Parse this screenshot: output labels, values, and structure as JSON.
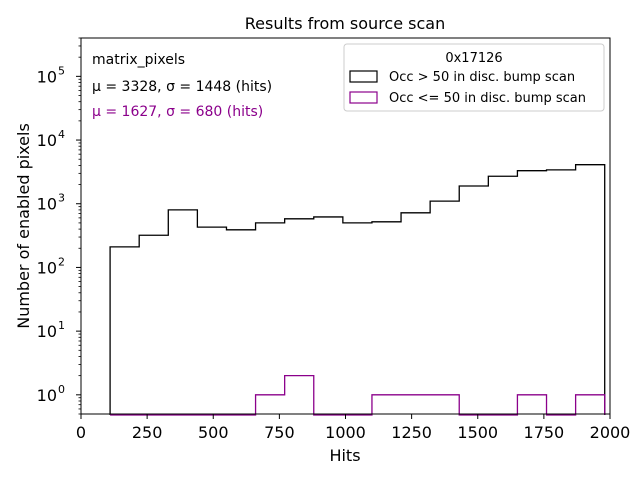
{
  "chart_data": {
    "type": "histogram",
    "title": "Results from source scan",
    "xlabel": "Hits",
    "ylabel": "Number of enabled pixels",
    "xlim": [
      0,
      2000
    ],
    "ylim": [
      0.5,
      400000
    ],
    "yscale": "log",
    "grid": false,
    "x_ticks": [
      0,
      250,
      500,
      750,
      1000,
      1250,
      1500,
      1750,
      2000
    ],
    "x_tick_labels": [
      "0",
      "250",
      "500",
      "750",
      "1000",
      "1250",
      "1500",
      "1750",
      "2000"
    ],
    "y_ticks": [
      1,
      10,
      100,
      1000,
      10000,
      100000
    ],
    "y_tick_labels": [
      {
        "base": "10",
        "exp": "0"
      },
      {
        "base": "10",
        "exp": "1"
      },
      {
        "base": "10",
        "exp": "2"
      },
      {
        "base": "10",
        "exp": "3"
      },
      {
        "base": "10",
        "exp": "4"
      },
      {
        "base": "10",
        "exp": "5"
      }
    ],
    "bin_edges": [
      110,
      220,
      330,
      440,
      550,
      660,
      770,
      880,
      990,
      1100,
      1210,
      1320,
      1430,
      1540,
      1650,
      1760,
      1870,
      1980
    ],
    "series": [
      {
        "name": "Occ > 50 in disc. bump scan",
        "color": "#000000",
        "counts": [
          210,
          320,
          800,
          430,
          390,
          500,
          580,
          620,
          500,
          520,
          720,
          1100,
          1900,
          2700,
          3300,
          3400,
          4100
        ]
      },
      {
        "name": "Occ <= 50 in disc. bump scan",
        "color": "#8b008b",
        "counts": [
          0,
          0,
          0,
          0,
          0,
          1,
          2,
          0,
          0,
          1,
          1,
          1,
          0,
          0,
          1,
          0,
          1
        ]
      }
    ],
    "legend": {
      "title": "0x17126",
      "placement": "top-right"
    },
    "annotations": [
      {
        "text": "matrix_pixels",
        "color": "#000000"
      },
      {
        "text": "μ = 3328, σ = 1448 (hits)",
        "color": "#000000"
      },
      {
        "text": "μ = 1627, σ = 680 (hits)",
        "color": "#8b008b"
      }
    ]
  }
}
